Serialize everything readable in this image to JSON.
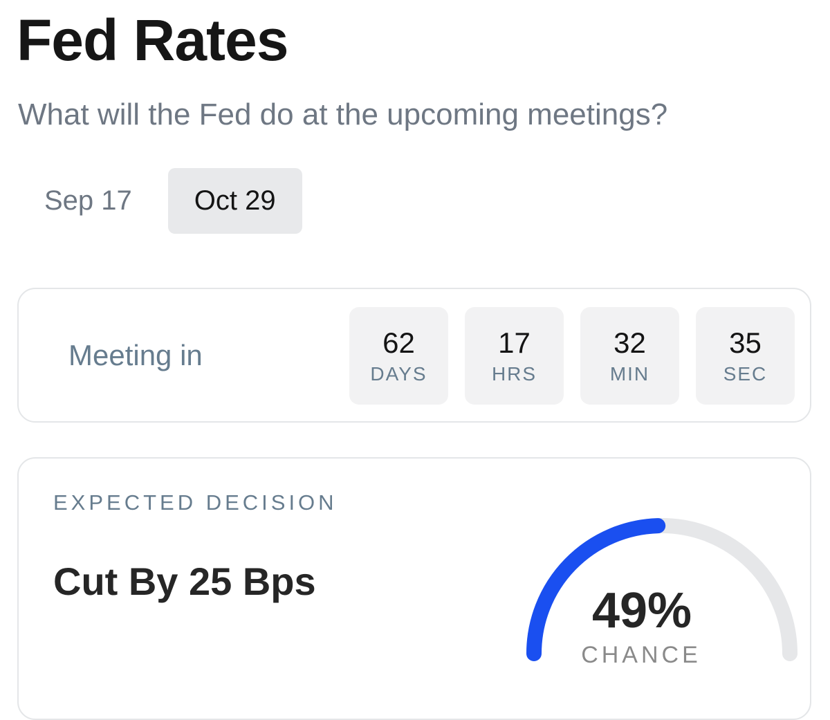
{
  "header": {
    "title": "Fed Rates",
    "subtitle": "What will the Fed do at the upcoming meetings?"
  },
  "tabs": [
    {
      "label": "Sep 17",
      "active": false
    },
    {
      "label": "Oct 29",
      "active": true
    }
  ],
  "countdown": {
    "label": "Meeting in",
    "units": [
      {
        "value": "62",
        "unit": "DAYS"
      },
      {
        "value": "17",
        "unit": "HRS"
      },
      {
        "value": "32",
        "unit": "MIN"
      },
      {
        "value": "35",
        "unit": "SEC"
      }
    ]
  },
  "decision": {
    "label": "EXPECTED DECISION",
    "value": "Cut By 25 Bps",
    "chance_text": "49%",
    "chance_fraction": 0.49,
    "chance_caption": "CHANCE"
  },
  "colors": {
    "accent": "#1a4ff0",
    "track": "#e6e7e9"
  }
}
